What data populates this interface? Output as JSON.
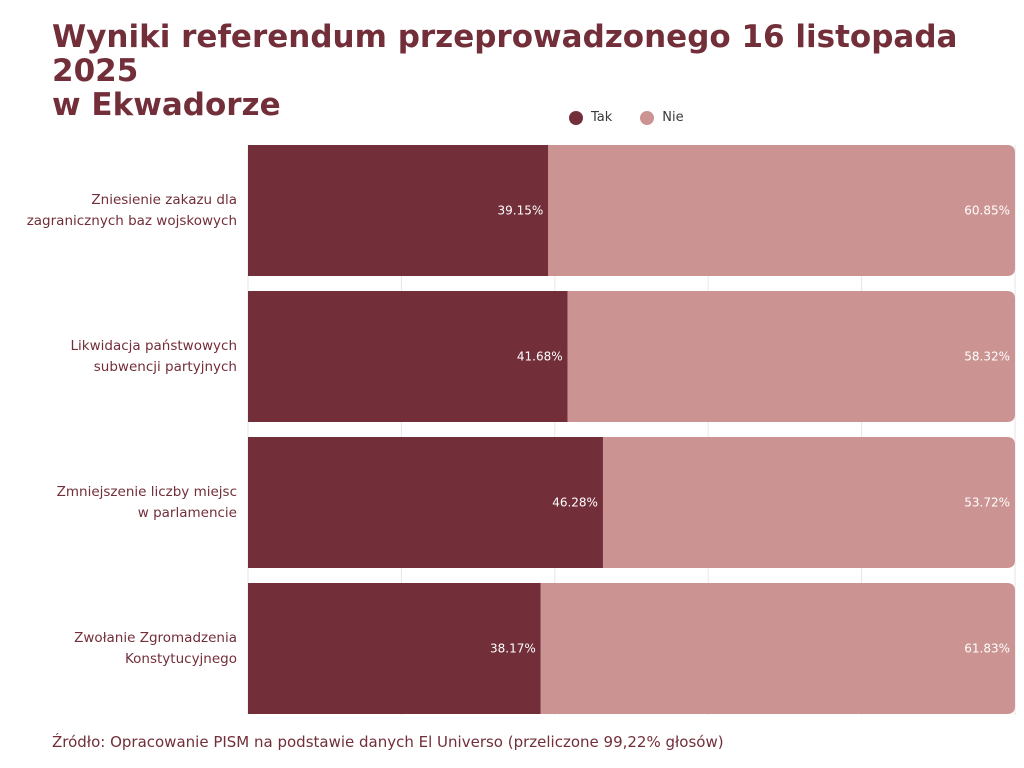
{
  "title_line1": "Wyniki referendum przeprowadzonego 16 listopada 2025",
  "title_line2": "w Ekwadorze",
  "source": "Źródło: Opracowanie PISM na podstawie danych El Universo (przeliczone 99,22% głosów)",
  "colors": {
    "tak": "#722e39",
    "nie": "#cb9391",
    "grid": "#e6e6e6",
    "title": "#722e39",
    "label_text": "#ffffff"
  },
  "chart_data": {
    "type": "bar",
    "orientation": "horizontal",
    "stacked": true,
    "xlim": [
      0,
      100
    ],
    "grid": true,
    "legend_position": "top",
    "categories": [
      [
        "Zniesienie zakazu dla",
        "zagranicznych baz wojskowych"
      ],
      [
        "Likwidacja państwowych",
        "subwencji partyjnych"
      ],
      [
        "Zmniejszenie liczby miejsc",
        "w parlamencie"
      ],
      [
        "Zwołanie Zgromadzenia",
        "Konstytucyjnego"
      ]
    ],
    "series": [
      {
        "name": "Tak",
        "values": [
          39.15,
          41.68,
          46.28,
          38.17
        ],
        "labels": [
          "39.15%",
          "41.68%",
          "46.28%",
          "38.17%"
        ]
      },
      {
        "name": "Nie",
        "values": [
          60.85,
          58.32,
          53.72,
          61.83
        ],
        "labels": [
          "60.85%",
          "58.32%",
          "53.72%",
          "61.83%"
        ]
      }
    ]
  }
}
